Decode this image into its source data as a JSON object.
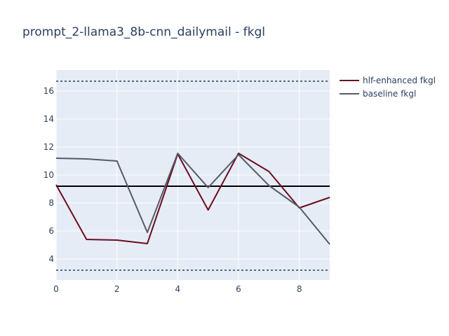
{
  "chart_data": {
    "type": "line",
    "title": "prompt_2-llama3_8b-cnn_dailymail - fkgl",
    "xlabel": "",
    "ylabel": "",
    "xlim": [
      0,
      9
    ],
    "ylim": [
      2.5,
      17.5
    ],
    "x_ticks": [
      0,
      2,
      4,
      6,
      8
    ],
    "y_ticks": [
      4,
      6,
      8,
      10,
      12,
      14,
      16
    ],
    "grid": true,
    "legend_position": "top-right",
    "x": [
      0,
      1,
      2,
      3,
      4,
      5,
      6,
      7,
      8,
      9
    ],
    "series": [
      {
        "name": "hlf-enhanced fkgl",
        "color": "#6b0d1e",
        "values": [
          9.3,
          5.4,
          5.35,
          5.1,
          11.5,
          7.5,
          11.55,
          10.25,
          7.65,
          8.4
        ]
      },
      {
        "name": "baseline fkgl",
        "color": "#555b63",
        "values": [
          11.2,
          11.15,
          11.0,
          5.9,
          11.55,
          9.1,
          11.45,
          9.25,
          7.7,
          5.05
        ]
      }
    ],
    "reference_lines": [
      {
        "y": 9.2,
        "style": "solid",
        "color": "#000000"
      },
      {
        "y": 16.7,
        "style": "dotted",
        "color": "#2a3f5f"
      },
      {
        "y": 3.2,
        "style": "dotted",
        "color": "#2a3f5f"
      }
    ]
  }
}
